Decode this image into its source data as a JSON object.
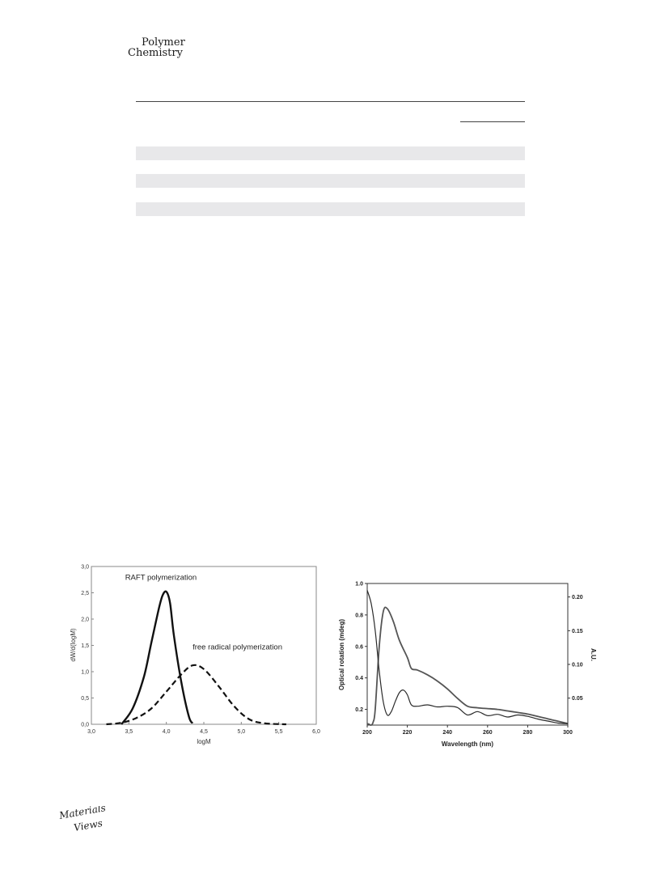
{
  "header": {
    "journal_line1": "Polymer",
    "journal_line2": "Chemistry"
  },
  "logo": {
    "line1": "Materials",
    "line2": "Views"
  },
  "chart_data": [
    {
      "type": "line",
      "title": "",
      "xlabel": "logM",
      "ylabel": "dW/d(logM)",
      "xlim": [
        3.0,
        6.0
      ],
      "ylim": [
        0.0,
        3.0
      ],
      "x_ticks": [
        "3,0",
        "3,5",
        "4,0",
        "4,5",
        "5,0",
        "5,5",
        "6,0"
      ],
      "y_ticks": [
        "0,0",
        "0,5",
        "1,0",
        "1,5",
        "2,0",
        "2,5",
        "3,0"
      ],
      "grid": false,
      "series": [
        {
          "name": "RAFT polymerization",
          "style": "solid",
          "x": [
            3.4,
            3.55,
            3.7,
            3.8,
            3.9,
            3.95,
            4.0,
            4.05,
            4.1,
            4.2,
            4.3,
            4.35
          ],
          "y": [
            0.0,
            0.3,
            0.9,
            1.55,
            2.2,
            2.45,
            2.52,
            2.3,
            1.7,
            0.8,
            0.15,
            0.02
          ]
        },
        {
          "name": "free radical polymerization",
          "style": "dashed",
          "x": [
            3.2,
            3.4,
            3.6,
            3.8,
            4.0,
            4.2,
            4.35,
            4.5,
            4.7,
            4.9,
            5.1,
            5.3,
            5.6
          ],
          "y": [
            0.0,
            0.03,
            0.12,
            0.3,
            0.62,
            0.95,
            1.12,
            1.05,
            0.72,
            0.35,
            0.1,
            0.02,
            0.0
          ]
        }
      ]
    },
    {
      "type": "line",
      "title": "",
      "xlabel": "Wavelength (nm)",
      "ylabel": "Optical rotation (mdeg)",
      "y2label": "A.U.",
      "xlim": [
        200,
        300
      ],
      "ylim": [
        0.1,
        1.0
      ],
      "y2lim": [
        0.01,
        0.22
      ],
      "x_ticks": [
        "200",
        "220",
        "240",
        "260",
        "280",
        "300"
      ],
      "y_ticks": [
        "0.2",
        "0.4",
        "0.6",
        "0.8",
        "1.0"
      ],
      "y2_ticks": [
        "0.05",
        "0.10",
        "0.15",
        "0.20"
      ],
      "grid": false,
      "series": [
        {
          "axis": "left",
          "x": [
            200,
            201,
            202,
            203,
            204,
            206,
            208,
            210,
            213,
            216,
            220,
            222,
            225,
            230,
            235,
            240,
            245,
            250,
            255,
            260,
            265,
            270,
            275,
            280,
            285,
            290,
            295,
            300
          ],
          "y": [
            0.11,
            0.105,
            0.1,
            0.12,
            0.2,
            0.6,
            0.82,
            0.84,
            0.76,
            0.64,
            0.53,
            0.46,
            0.45,
            0.42,
            0.38,
            0.33,
            0.27,
            0.22,
            0.21,
            0.205,
            0.2,
            0.19,
            0.18,
            0.17,
            0.155,
            0.14,
            0.125,
            0.11
          ]
        },
        {
          "axis": "right",
          "x": [
            200,
            202,
            204,
            206,
            208,
            210,
            212,
            214,
            216,
            218,
            220,
            222,
            225,
            230,
            235,
            240,
            245,
            250,
            255,
            260,
            265,
            270,
            275,
            280,
            285,
            290,
            295,
            300
          ],
          "y": [
            0.21,
            0.19,
            0.15,
            0.09,
            0.045,
            0.025,
            0.03,
            0.045,
            0.058,
            0.062,
            0.055,
            0.04,
            0.038,
            0.04,
            0.037,
            0.038,
            0.036,
            0.025,
            0.03,
            0.024,
            0.026,
            0.022,
            0.025,
            0.023,
            0.019,
            0.016,
            0.013,
            0.012
          ]
        }
      ]
    }
  ]
}
